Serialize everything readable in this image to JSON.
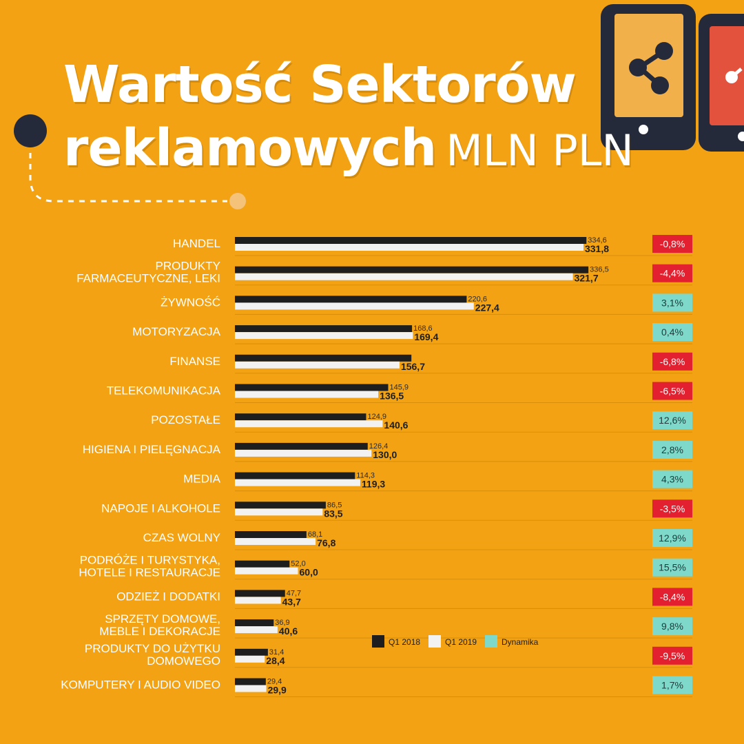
{
  "title_line1": "Wartość Sektorów",
  "title_line2": "reklamowych",
  "title_unit": "MLN PLN",
  "colors": {
    "background": "#F2A213",
    "q1_2018": "#1E1E1E",
    "q1_2019": "#F2F2F2",
    "positive": "#7ED9CB",
    "negative": "#E3202F"
  },
  "chart_data": {
    "type": "bar",
    "orientation": "horizontal",
    "categories": [
      [
        "HANDEL"
      ],
      [
        "PRODUKTY",
        "FARMACEUTYCZNE, LEKI"
      ],
      [
        "ŻYWNOŚĆ"
      ],
      [
        "MOTORYZACJA"
      ],
      [
        "FINANSE"
      ],
      [
        "TELEKOMUNIKACJA"
      ],
      [
        "POZOSTAŁE"
      ],
      [
        "HIGIENA I PIELĘGNACJA"
      ],
      [
        "MEDIA"
      ],
      [
        "NAPOJE I ALKOHOLE"
      ],
      [
        "CZAS WOLNY"
      ],
      [
        "PODRÓŻE I TURYSTYKA,",
        "HOTELE I RESTAURACJE"
      ],
      [
        "ODZIEŻ I DODATKI"
      ],
      [
        "SPRZĘTY DOMOWE,",
        "MEBLE I DEKORACJE"
      ],
      [
        "PRODUKTY DO UŻYTKU",
        "DOMOWEGO"
      ],
      [
        "KOMPUTERY I AUDIO VIDEO"
      ]
    ],
    "series": [
      {
        "name": "Q1 2018",
        "values": [
          334.6,
          336.5,
          220.6,
          168.6,
          168.0,
          145.9,
          124.9,
          126.4,
          114.3,
          86.5,
          68.1,
          52.0,
          47.7,
          36.9,
          31.4,
          29.4
        ],
        "labels": [
          "334,6",
          "336,5",
          "220,6",
          "168,6",
          "",
          "145,9",
          "124,9",
          "126,4",
          "114,3",
          "86,5",
          "68,1",
          "52,0",
          "47,7",
          "36,9",
          "31,4",
          "29,4"
        ]
      },
      {
        "name": "Q1 2019",
        "values": [
          331.8,
          321.7,
          227.4,
          169.4,
          156.7,
          136.5,
          140.6,
          130.0,
          119.3,
          83.5,
          76.8,
          60.0,
          43.7,
          40.6,
          28.4,
          29.9
        ],
        "labels": [
          "331,8",
          "321,7",
          "227,4",
          "169,4",
          "156,7",
          "136,5",
          "140,6",
          "130,0",
          "119,3",
          "83,5",
          "76,8",
          "60,0",
          "43,7",
          "40,6",
          "28,4",
          "29,9"
        ]
      }
    ],
    "dynamics": [
      "-0,8%",
      "-4,4%",
      "3,1%",
      "0,4%",
      "-6,8%",
      "-6,5%",
      "12,6%",
      "2,8%",
      "4,3%",
      "-3,5%",
      "12,9%",
      "15,5%",
      "-8,4%",
      "9,8%",
      "-9,5%",
      "1,7%"
    ],
    "dynamics_label": "Dynamika",
    "legend_position": "lower-right inside plot",
    "xlim": [
      0,
      345
    ],
    "grid": false
  }
}
